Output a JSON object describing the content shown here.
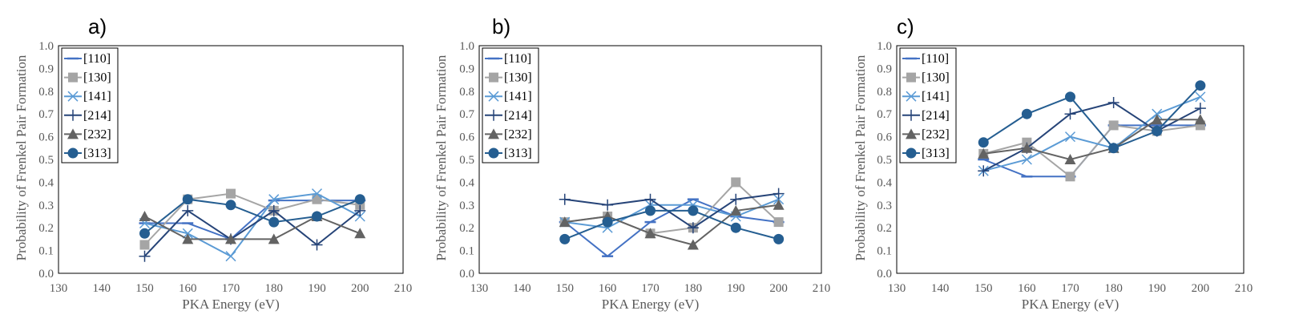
{
  "chart_data": [
    {
      "type": "line",
      "panel_label": "a)",
      "xlabel": "PKA Energy (eV)",
      "ylabel": "Probability of Frenkel Pair Formation",
      "xlim": [
        130,
        210
      ],
      "ylim": [
        0,
        1.0
      ],
      "xticks": [
        "130",
        "140",
        "150",
        "160",
        "170",
        "180",
        "190",
        "200",
        "210"
      ],
      "yticks": [
        "0.0",
        "0.1",
        "0.2",
        "0.3",
        "0.4",
        "0.5",
        "0.6",
        "0.7",
        "0.8",
        "0.9",
        "1.0"
      ],
      "x": [
        150,
        160,
        170,
        180,
        190,
        200
      ],
      "legend_position": "top-left",
      "grid": false,
      "series": [
        {
          "name": "[110]",
          "marker": "dash",
          "color": "#4472C4",
          "values": [
            0.22,
            0.22,
            0.15,
            0.32,
            0.32,
            0.32
          ]
        },
        {
          "name": "[130]",
          "marker": "square",
          "color": "#A5A5A5",
          "values": [
            0.125,
            0.325,
            0.35,
            0.275,
            0.325,
            0.3
          ]
        },
        {
          "name": "[141]",
          "marker": "x",
          "color": "#5B9BD5",
          "values": [
            0.22,
            0.175,
            0.075,
            0.325,
            0.35,
            0.25
          ]
        },
        {
          "name": "[214]",
          "marker": "plus",
          "color": "#264478",
          "values": [
            0.075,
            0.275,
            0.15,
            0.275,
            0.125,
            0.275
          ]
        },
        {
          "name": "[232]",
          "marker": "triangle",
          "color": "#636363",
          "values": [
            0.25,
            0.15,
            0.15,
            0.15,
            0.25,
            0.175
          ]
        },
        {
          "name": "[313]",
          "marker": "circle",
          "color": "#255E91",
          "values": [
            0.175,
            0.325,
            0.3,
            0.225,
            0.25,
            0.325
          ]
        }
      ]
    },
    {
      "type": "line",
      "panel_label": "b)",
      "xlabel": "PKA Energy (eV)",
      "ylabel": "Probability of Frenkel Pair Formation",
      "xlim": [
        130,
        210
      ],
      "ylim": [
        0,
        1.0
      ],
      "xticks": [
        "130",
        "140",
        "150",
        "160",
        "170",
        "180",
        "190",
        "200",
        "210"
      ],
      "yticks": [
        "0.0",
        "0.1",
        "0.2",
        "0.3",
        "0.4",
        "0.5",
        "0.6",
        "0.7",
        "0.8",
        "0.9",
        "1.0"
      ],
      "x": [
        150,
        160,
        170,
        180,
        190,
        200
      ],
      "legend_position": "top-left",
      "grid": false,
      "series": [
        {
          "name": "[110]",
          "marker": "dash",
          "color": "#4472C4",
          "values": [
            0.225,
            0.075,
            0.225,
            0.325,
            0.25,
            0.225
          ]
        },
        {
          "name": "[130]",
          "marker": "square",
          "color": "#A5A5A5",
          "values": [
            0.225,
            0.25,
            0.175,
            0.2,
            0.4,
            0.225
          ]
        },
        {
          "name": "[141]",
          "marker": "x",
          "color": "#5B9BD5",
          "values": [
            0.225,
            0.2,
            0.3,
            0.3,
            0.25,
            0.325
          ]
        },
        {
          "name": "[214]",
          "marker": "plus",
          "color": "#264478",
          "values": [
            0.325,
            0.3,
            0.325,
            0.2,
            0.325,
            0.35
          ]
        },
        {
          "name": "[232]",
          "marker": "triangle",
          "color": "#636363",
          "values": [
            0.225,
            0.25,
            0.175,
            0.125,
            0.275,
            0.3
          ]
        },
        {
          "name": "[313]",
          "marker": "circle",
          "color": "#255E91",
          "values": [
            0.15,
            0.225,
            0.275,
            0.275,
            0.2,
            0.15
          ]
        }
      ]
    },
    {
      "type": "line",
      "panel_label": "c)",
      "xlabel": "PKA Energy (eV)",
      "ylabel": "Probability of Frenkel Pair Formation",
      "xlim": [
        130,
        210
      ],
      "ylim": [
        0,
        1.0
      ],
      "xticks": [
        "130",
        "140",
        "150",
        "160",
        "170",
        "180",
        "190",
        "200",
        "210"
      ],
      "yticks": [
        "0.0",
        "0.1",
        "0.2",
        "0.3",
        "0.4",
        "0.5",
        "0.6",
        "0.7",
        "0.8",
        "0.9",
        "1.0"
      ],
      "x": [
        150,
        160,
        170,
        180,
        190,
        200
      ],
      "legend_position": "top-left",
      "grid": false,
      "series": [
        {
          "name": "[110]",
          "marker": "dash",
          "color": "#4472C4",
          "values": [
            0.5,
            0.425,
            0.425,
            0.65,
            0.65,
            0.65
          ]
        },
        {
          "name": "[130]",
          "marker": "square",
          "color": "#A5A5A5",
          "values": [
            0.525,
            0.575,
            0.425,
            0.65,
            0.625,
            0.65
          ]
        },
        {
          "name": "[141]",
          "marker": "x",
          "color": "#5B9BD5",
          "values": [
            0.45,
            0.5,
            0.6,
            0.55,
            0.7,
            0.775
          ]
        },
        {
          "name": "[214]",
          "marker": "plus",
          "color": "#264478",
          "values": [
            0.45,
            0.55,
            0.7,
            0.75,
            0.625,
            0.725
          ]
        },
        {
          "name": "[232]",
          "marker": "triangle",
          "color": "#636363",
          "values": [
            0.525,
            0.55,
            0.5,
            0.55,
            0.675,
            0.675
          ]
        },
        {
          "name": "[313]",
          "marker": "circle",
          "color": "#255E91",
          "values": [
            0.575,
            0.7,
            0.775,
            0.55,
            0.625,
            0.825
          ]
        }
      ]
    }
  ]
}
